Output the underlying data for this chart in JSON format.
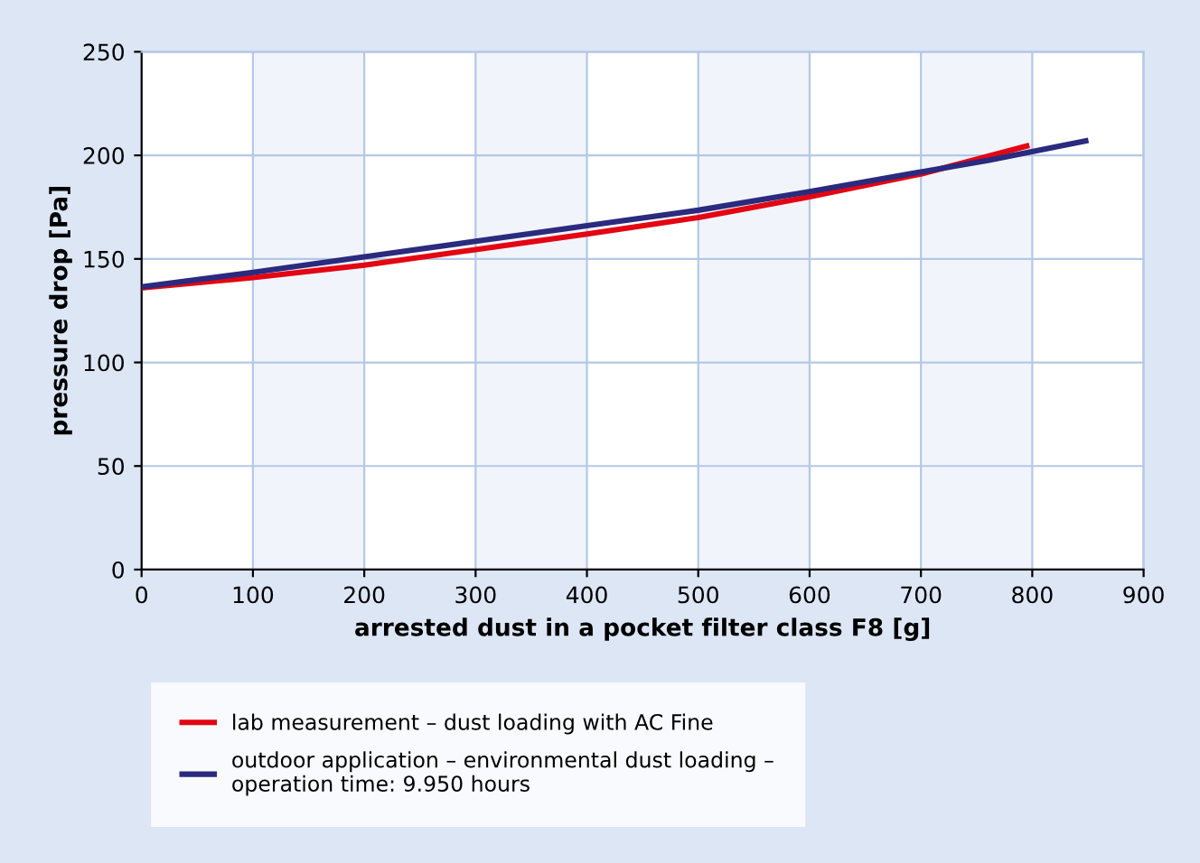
{
  "chart_data": {
    "type": "line",
    "xlabel": "arrested dust in a pocket filter class F8 [g]",
    "ylabel": "pressure drop [Pa]",
    "xlim": [
      0,
      900
    ],
    "xticks": [
      0,
      100,
      200,
      300,
      400,
      500,
      600,
      700,
      800,
      900
    ],
    "ylim": [
      0,
      250
    ],
    "yticks": [
      0,
      50,
      100,
      150,
      200,
      250
    ],
    "grid": true,
    "legend": "bottom",
    "line_style": "solid",
    "marker": "none",
    "bands": [
      {
        "axis": "x",
        "from": 100,
        "to": 200,
        "color": "#f2f4fb"
      },
      {
        "axis": "x",
        "from": 300,
        "to": 400,
        "color": "#f2f4fb"
      },
      {
        "axis": "x",
        "from": 500,
        "to": 600,
        "color": "#f2f4fb"
      },
      {
        "axis": "x",
        "from": 700,
        "to": 800,
        "color": "#f2f4fb"
      }
    ],
    "series": [
      {
        "name": "lab measurement – dust loading with AC Fine",
        "color": "#e30613",
        "x": [
          0,
          100,
          200,
          300,
          400,
          500,
          600,
          700,
          795
        ],
        "values": [
          136,
          141,
          147,
          154.5,
          162,
          170,
          180,
          191,
          204.5
        ]
      },
      {
        "name": "outdoor application – environmental dust loading –\noperation time: 9.950 hours",
        "color": "#2a2a7e",
        "x": [
          0,
          100,
          200,
          300,
          400,
          500,
          600,
          700,
          760,
          848
        ],
        "values": [
          136.5,
          143.5,
          151,
          158.5,
          166,
          173.5,
          182.5,
          192,
          197.5,
          207
        ]
      }
    ]
  }
}
